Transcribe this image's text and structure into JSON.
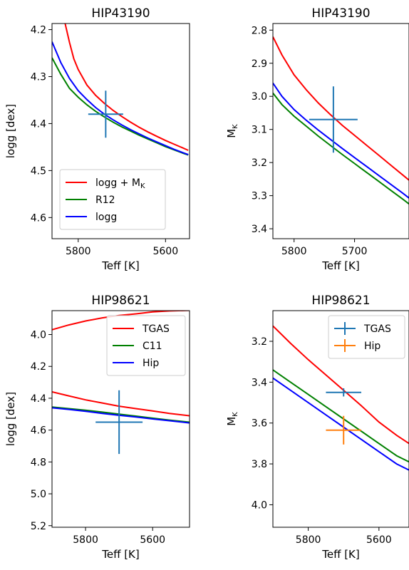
{
  "chart_data": [
    {
      "type": "line",
      "title": "HIP43190",
      "xlabel": "Teff [K]",
      "ylabel": "logg [dex]",
      "xlim": [
        5860,
        5545
      ],
      "ylim": [
        4.645,
        4.187
      ],
      "xticks": [
        5800,
        5600
      ],
      "yticks": [
        4.2,
        4.3,
        4.4,
        4.5,
        4.6
      ],
      "series": [
        {
          "name": "logg + M_K",
          "color": "#ff0000",
          "x": [
            5830,
            5820,
            5810,
            5800,
            5780,
            5760,
            5740,
            5720,
            5700,
            5680,
            5660,
            5640,
            5620,
            5600,
            5580,
            5560,
            5548
          ],
          "y": [
            4.187,
            4.227,
            4.262,
            4.285,
            4.318,
            4.34,
            4.357,
            4.372,
            4.385,
            4.397,
            4.408,
            4.418,
            4.427,
            4.436,
            4.444,
            4.452,
            4.457
          ]
        },
        {
          "name": "R12",
          "color": "#008000",
          "x": [
            5860,
            5840,
            5820,
            5800,
            5780,
            5760,
            5740,
            5720,
            5700,
            5680,
            5660,
            5640,
            5620,
            5600,
            5580,
            5560,
            5548
          ],
          "y": [
            4.26,
            4.295,
            4.325,
            4.344,
            4.36,
            4.374,
            4.386,
            4.397,
            4.407,
            4.416,
            4.425,
            4.433,
            4.441,
            4.449,
            4.456,
            4.463,
            4.467
          ]
        },
        {
          "name": "logg",
          "color": "#0000ff",
          "x": [
            5860,
            5840,
            5820,
            5800,
            5780,
            5760,
            5740,
            5720,
            5700,
            5680,
            5660,
            5640,
            5620,
            5600,
            5580,
            5560,
            5548
          ],
          "y": [
            4.226,
            4.27,
            4.304,
            4.33,
            4.349,
            4.366,
            4.38,
            4.392,
            4.403,
            4.413,
            4.422,
            4.431,
            4.439,
            4.447,
            4.455,
            4.462,
            4.466
          ]
        }
      ],
      "points": [
        {
          "x": 5737,
          "y": 4.38,
          "xerr": 40,
          "yerr": 0.05,
          "color": "#1f77b4"
        }
      ],
      "legend": {
        "position": "lower-left",
        "entries": [
          "logg + M",
          "R12",
          "logg"
        ],
        "subscripts": [
          "K",
          "",
          ""
        ]
      }
    },
    {
      "type": "line",
      "title": "HIP43190",
      "xlabel": "Teff [K]",
      "ylabel": "M",
      "ylabel_sub": "K",
      "xlim": [
        5835,
        5610
      ],
      "ylim": [
        3.43,
        2.78
      ],
      "xticks": [
        5800,
        5700
      ],
      "yticks": [
        2.8,
        2.9,
        3.0,
        3.1,
        3.2,
        3.3,
        3.4
      ],
      "series": [
        {
          "name": "",
          "color": "#ff0000",
          "x": [
            5835,
            5820,
            5800,
            5780,
            5760,
            5740,
            5720,
            5700,
            5680,
            5660,
            5640,
            5620,
            5610
          ],
          "y": [
            2.82,
            2.875,
            2.935,
            2.98,
            3.02,
            3.055,
            3.088,
            3.118,
            3.148,
            3.178,
            3.208,
            3.238,
            3.253
          ]
        },
        {
          "name": "",
          "color": "#008000",
          "x": [
            5835,
            5820,
            5800,
            5780,
            5760,
            5740,
            5720,
            5700,
            5680,
            5660,
            5640,
            5620,
            5610
          ],
          "y": [
            2.99,
            3.025,
            3.06,
            3.09,
            3.12,
            3.148,
            3.176,
            3.203,
            3.23,
            3.257,
            3.284,
            3.311,
            3.325
          ]
        },
        {
          "name": "",
          "color": "#0000ff",
          "x": [
            5835,
            5820,
            5800,
            5780,
            5760,
            5740,
            5720,
            5700,
            5680,
            5660,
            5640,
            5620,
            5610
          ],
          "y": [
            2.96,
            3.0,
            3.04,
            3.072,
            3.102,
            3.13,
            3.158,
            3.185,
            3.212,
            3.239,
            3.266,
            3.293,
            3.307
          ]
        }
      ],
      "points": [
        {
          "x": 5735,
          "y": 3.07,
          "xerr": 40,
          "yerr": 0.1,
          "color": "#1f77b4"
        }
      ]
    },
    {
      "type": "line",
      "title": "HIP98621",
      "xlabel": "Teff [K]",
      "ylabel": "logg [dex]",
      "xlim": [
        5900,
        5490
      ],
      "ylim": [
        5.21,
        3.85
      ],
      "xticks": [
        5800,
        5600
      ],
      "yticks": [
        4.0,
        4.2,
        4.4,
        4.6,
        4.8,
        5.0,
        5.2
      ],
      "series": [
        {
          "name": "TGAS",
          "color": "#ff0000",
          "x": [
            5900,
            5850,
            5800,
            5750,
            5700,
            5650,
            5600,
            5550,
            5490
          ],
          "y": [
            3.97,
            3.94,
            3.915,
            3.895,
            3.88,
            3.87,
            3.858,
            3.852,
            3.848
          ]
        },
        {
          "name": "",
          "color": "#ff0000",
          "x": [
            5900,
            5850,
            5800,
            5750,
            5700,
            5650,
            5600,
            5550,
            5490
          ],
          "y": [
            4.36,
            4.385,
            4.41,
            4.43,
            4.45,
            4.465,
            4.48,
            4.495,
            4.51
          ]
        },
        {
          "name": "C11",
          "color": "#008000",
          "x": [
            5900,
            5850,
            5800,
            5750,
            5700,
            5650,
            5600,
            5550,
            5490
          ],
          "y": [
            4.455,
            4.465,
            4.475,
            4.487,
            4.5,
            4.512,
            4.525,
            4.537,
            4.55
          ]
        },
        {
          "name": "Hip",
          "color": "#0000ff",
          "x": [
            5900,
            5850,
            5800,
            5750,
            5700,
            5650,
            5600,
            5550,
            5490
          ],
          "y": [
            4.46,
            4.47,
            4.482,
            4.495,
            4.507,
            4.518,
            4.53,
            4.541,
            4.555
          ]
        }
      ],
      "points": [
        {
          "x": 5700,
          "y": 4.55,
          "xerr": 70,
          "yerr": 0.2,
          "color": "#1f77b4"
        }
      ],
      "legend": {
        "position": "top-right",
        "entries": [
          "TGAS",
          "C11",
          "Hip"
        ],
        "subscripts": [
          "",
          "",
          ""
        ]
      }
    },
    {
      "type": "line",
      "title": "HIP98621",
      "xlabel": "Teff [K]",
      "ylabel": "M",
      "ylabel_sub": "K",
      "xlim": [
        5900,
        5515
      ],
      "ylim": [
        4.11,
        3.05
      ],
      "xticks": [
        5800,
        5600
      ],
      "yticks": [
        3.2,
        3.4,
        3.6,
        3.8,
        4.0
      ],
      "series": [
        {
          "name": "",
          "color": "#ff0000",
          "x": [
            5900,
            5850,
            5800,
            5750,
            5700,
            5650,
            5600,
            5550,
            5515
          ],
          "y": [
            3.125,
            3.21,
            3.29,
            3.365,
            3.44,
            3.515,
            3.595,
            3.66,
            3.7
          ]
        },
        {
          "name": "",
          "color": "#008000",
          "x": [
            5900,
            5850,
            5800,
            5750,
            5700,
            5650,
            5600,
            5550,
            5515
          ],
          "y": [
            3.34,
            3.4,
            3.46,
            3.52,
            3.58,
            3.64,
            3.7,
            3.76,
            3.79
          ]
        },
        {
          "name": "",
          "color": "#0000ff",
          "x": [
            5900,
            5850,
            5800,
            5750,
            5700,
            5650,
            5600,
            5550,
            5515
          ],
          "y": [
            3.38,
            3.44,
            3.5,
            3.56,
            3.62,
            3.68,
            3.74,
            3.8,
            3.83
          ]
        }
      ],
      "points": [
        {
          "x": 5700,
          "y": 3.45,
          "xerr": 50,
          "yerr": 0.02,
          "color": "#1f77b4"
        },
        {
          "x": 5700,
          "y": 3.635,
          "xerr": 50,
          "yerr": 0.07,
          "color": "#ff7f0e"
        }
      ],
      "legend": {
        "position": "top-right",
        "entries": [
          "TGAS",
          "Hip"
        ],
        "markers": true,
        "colors": [
          "#1f77b4",
          "#ff7f0e"
        ]
      }
    }
  ]
}
